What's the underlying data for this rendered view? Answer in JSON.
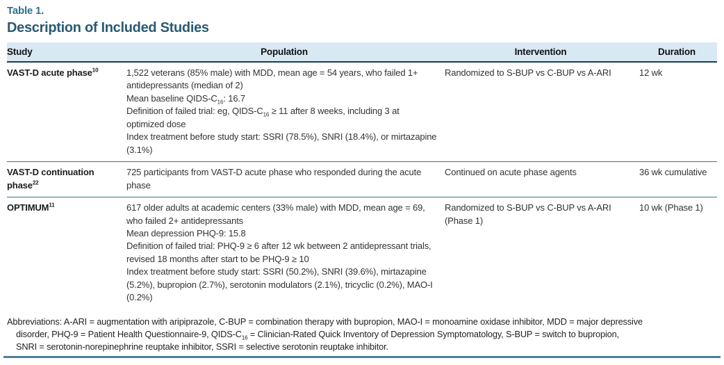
{
  "table_label": "Table 1.",
  "title": "Description of Included Studies",
  "columns": [
    "Study",
    "Population",
    "Intervention",
    "Duration"
  ],
  "rows": [
    {
      "study": "VAST-D acute phase^10^",
      "population": [
        "1,522 veterans (85% male) with MDD, mean age = 54 years, who failed 1+ antidepressants (median of 2)",
        "Mean baseline QIDS-C~16~: 16.7",
        "Definition of failed trial: eg, QIDS-C~16~ ≥ 11 after 8 weeks, including 3 at optimized dose",
        "Index treatment before study start: SSRI (78.5%), SNRI (18.4%), or mirtazapine (3.1%)"
      ],
      "intervention": "Randomized to S-BUP vs C-BUP vs A-ARI",
      "duration": "12 wk"
    },
    {
      "study": "VAST-D continuation phase^22^",
      "population": [
        "725 participants from VAST-D acute phase who responded during the acute phase"
      ],
      "intervention": "Continued on acute phase agents",
      "duration": "36 wk cumulative"
    },
    {
      "study": "OPTIMUM^11^",
      "population": [
        "617 older adults at academic centers (33% male) with MDD, mean age = 69, who failed 2+ antidepressants",
        "Mean depression PHQ-9: 15.8",
        "Definition of failed trial: PHQ-9 ≥ 6 after 12 wk between 2 antidepressant trials, revised 18 months after start to be PHQ-9 ≥ 10",
        "Index treatment before study start: SSRI (50.2%), SNRI (39.6%), mirtazapine (5.2%), bupropion (2.7%), serotonin modulators (2.1%), tricyclic (0.2%), MAO-I (0.2%)"
      ],
      "intervention": "Randomized to S-BUP vs C-BUP vs A-ARI (Phase 1)",
      "duration": "10 wk (Phase 1)"
    }
  ],
  "footnote_lines": [
    "Abbreviations: A-ARI = augmentation with aripiprazole, C-BUP = combination therapy with bupropion, MAO-I = monoamine oxidase inhibitor, MDD = major depressive",
    "disorder, PHQ-9 = Patient Health Questionnaire-9, QIDS-C~16~ = Clinician-Rated Quick Inventory of Depression Symptomatology, S-BUP = switch to bupropion,",
    "SNRI = serotonin-norepinephrine reuptake inhibitor, SSRI = selective serotonin reuptake inhibitor."
  ],
  "colors": {
    "accent_label": "#2f6f8f",
    "title": "#2a5a72",
    "header_bg": "#d9e9f4",
    "header_rule": "#1b3c52",
    "row_rule": "#366f8e",
    "bottom_rule": "#4c7e9a",
    "body_text": "#333333"
  }
}
